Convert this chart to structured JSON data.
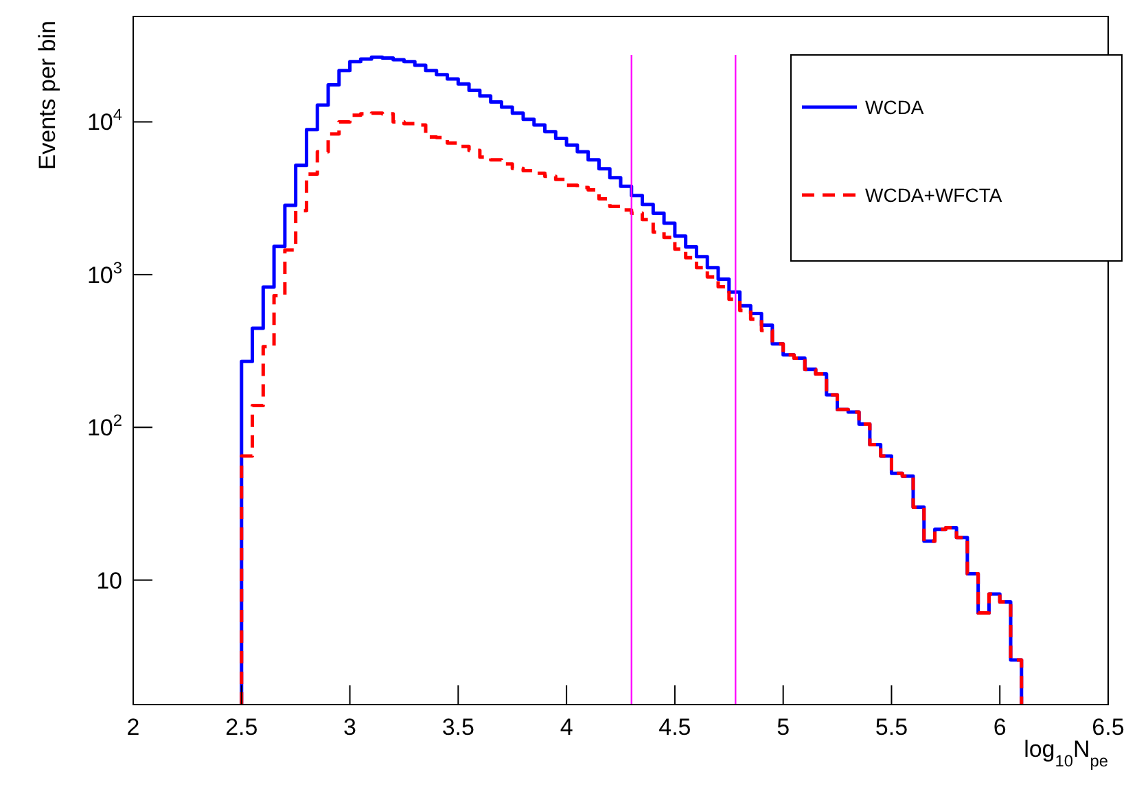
{
  "chart_data": {
    "type": "histogram",
    "xlabel": "log$_{10}$N$_{pe}$",
    "ylabel": "Events per bin",
    "bins": [
      2.5,
      2.55,
      2.6,
      2.65,
      2.7,
      2.75,
      2.8,
      2.85,
      2.9,
      2.95,
      3.0,
      3.05,
      3.1,
      3.15,
      3.2,
      3.25,
      3.3,
      3.35,
      3.4,
      3.45,
      3.5,
      3.55,
      3.6,
      3.65,
      3.7,
      3.75,
      3.8,
      3.85,
      3.9,
      3.95,
      4.0,
      4.05,
      4.1,
      4.15,
      4.2,
      4.25,
      4.3,
      4.35,
      4.4,
      4.45,
      4.5,
      4.55,
      4.6,
      4.65,
      4.7,
      4.75,
      4.8,
      4.85,
      4.9,
      4.95,
      5.0,
      5.05,
      5.1,
      5.15,
      5.2,
      5.25,
      5.3,
      5.35,
      5.4,
      5.45,
      5.5,
      5.55,
      5.6,
      5.65,
      5.7,
      5.75,
      5.8,
      5.85,
      5.9,
      5.95,
      6.0,
      6.05,
      6.1
    ],
    "series": [
      {
        "name": "WCDA",
        "color": "#0000ff",
        "line_style": "solid",
        "values": [
          270,
          445,
          830,
          1530,
          2840,
          5200,
          8900,
          12900,
          17500,
          21700,
          24800,
          25800,
          26500,
          26200,
          25500,
          24800,
          23500,
          21700,
          20400,
          19100,
          17700,
          16100,
          14800,
          13500,
          12500,
          11400,
          10400,
          9540,
          8630,
          7800,
          7050,
          6370,
          5650,
          4930,
          4310,
          3790,
          3290,
          2880,
          2520,
          2170,
          1790,
          1520,
          1310,
          1110,
          935,
          770,
          625,
          557,
          467,
          352,
          298,
          284,
          240,
          224,
          163,
          131,
          126,
          105,
          77,
          65,
          50,
          48,
          30,
          18,
          21.5,
          22,
          19,
          11,
          6.1,
          8.1,
          7.2,
          3
        ]
      },
      {
        "name": "WCDA+WFCTA",
        "color": "#ff0000",
        "line_style": "dashed",
        "values": [
          65,
          139,
          338,
          728,
          1450,
          2620,
          4550,
          6370,
          8340,
          10000,
          11060,
          11300,
          11400,
          11300,
          10000,
          9750,
          9550,
          7960,
          7900,
          7280,
          6900,
          6500,
          5880,
          5650,
          5310,
          4960,
          4800,
          4610,
          4400,
          4200,
          3850,
          3720,
          3590,
          3140,
          2800,
          2650,
          2520,
          2290,
          1900,
          1750,
          1470,
          1290,
          1110,
          966,
          834,
          690,
          583,
          511,
          431,
          352,
          298,
          284,
          240,
          224,
          163,
          131,
          126,
          105,
          77,
          65,
          50,
          48,
          30,
          18,
          21.5,
          22,
          19,
          11,
          6.1,
          8.1,
          7.2,
          3
        ]
      }
    ],
    "xlim": [
      2,
      6.5
    ],
    "xticks": [
      2,
      2.5,
      3,
      3.5,
      4,
      4.5,
      5,
      5.5,
      6,
      6.5
    ],
    "ylim": [
      1.53,
      49000
    ],
    "yticks": [
      10,
      {
        "value": 100,
        "label": "10$^{2}$"
      },
      {
        "value": 1000,
        "label": "10$^{3}$"
      },
      {
        "value": 10000,
        "label": "10$^{4}$"
      }
    ],
    "log": "y",
    "ref_lines": [
      {
        "axis": "x",
        "value": 4.3,
        "color": "#ff00ff"
      },
      {
        "axis": "x",
        "value": 4.78,
        "color": "#ff00ff"
      }
    ],
    "legend": "top right"
  }
}
